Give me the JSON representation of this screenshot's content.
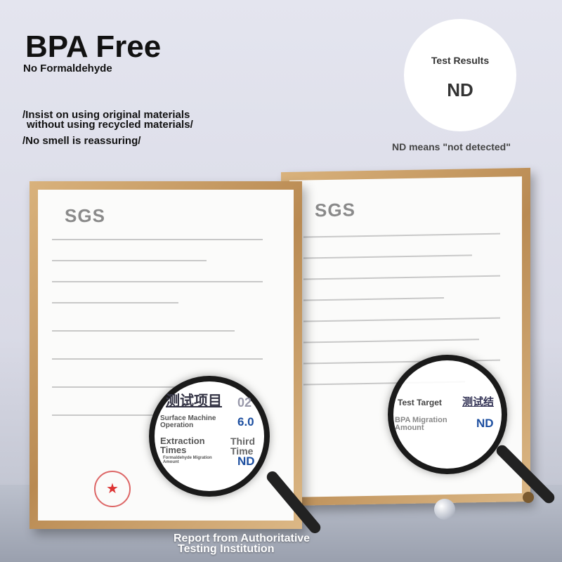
{
  "headline": {
    "title": "BPA Free",
    "subtitle": "No Formaldehyde"
  },
  "claims": [
    "/Insist on using original materials",
    "without using recycled materials/",
    "/No smell is reassuring/"
  ],
  "badge": {
    "label": "Test Results",
    "value": "ND",
    "note": "ND means \"not detected\""
  },
  "certificates": {
    "logo": "SGS"
  },
  "magnifier_left": {
    "header": "测试项目",
    "header_value": "02",
    "row1_label": "Surface Machine Operation",
    "row1_value": "6.0",
    "row2_label": "Extraction Times",
    "row2_value": "Third Time",
    "row3_label": "Formaldehyde Migration Amount",
    "row3_value": "ND"
  },
  "magnifier_right": {
    "header": "测试结",
    "row1_label": "Test Target",
    "row2_label": "BPA Migration Amount",
    "row2_value": "ND"
  },
  "footer": [
    "Report from Authoritative",
    "Testing Institution"
  ]
}
